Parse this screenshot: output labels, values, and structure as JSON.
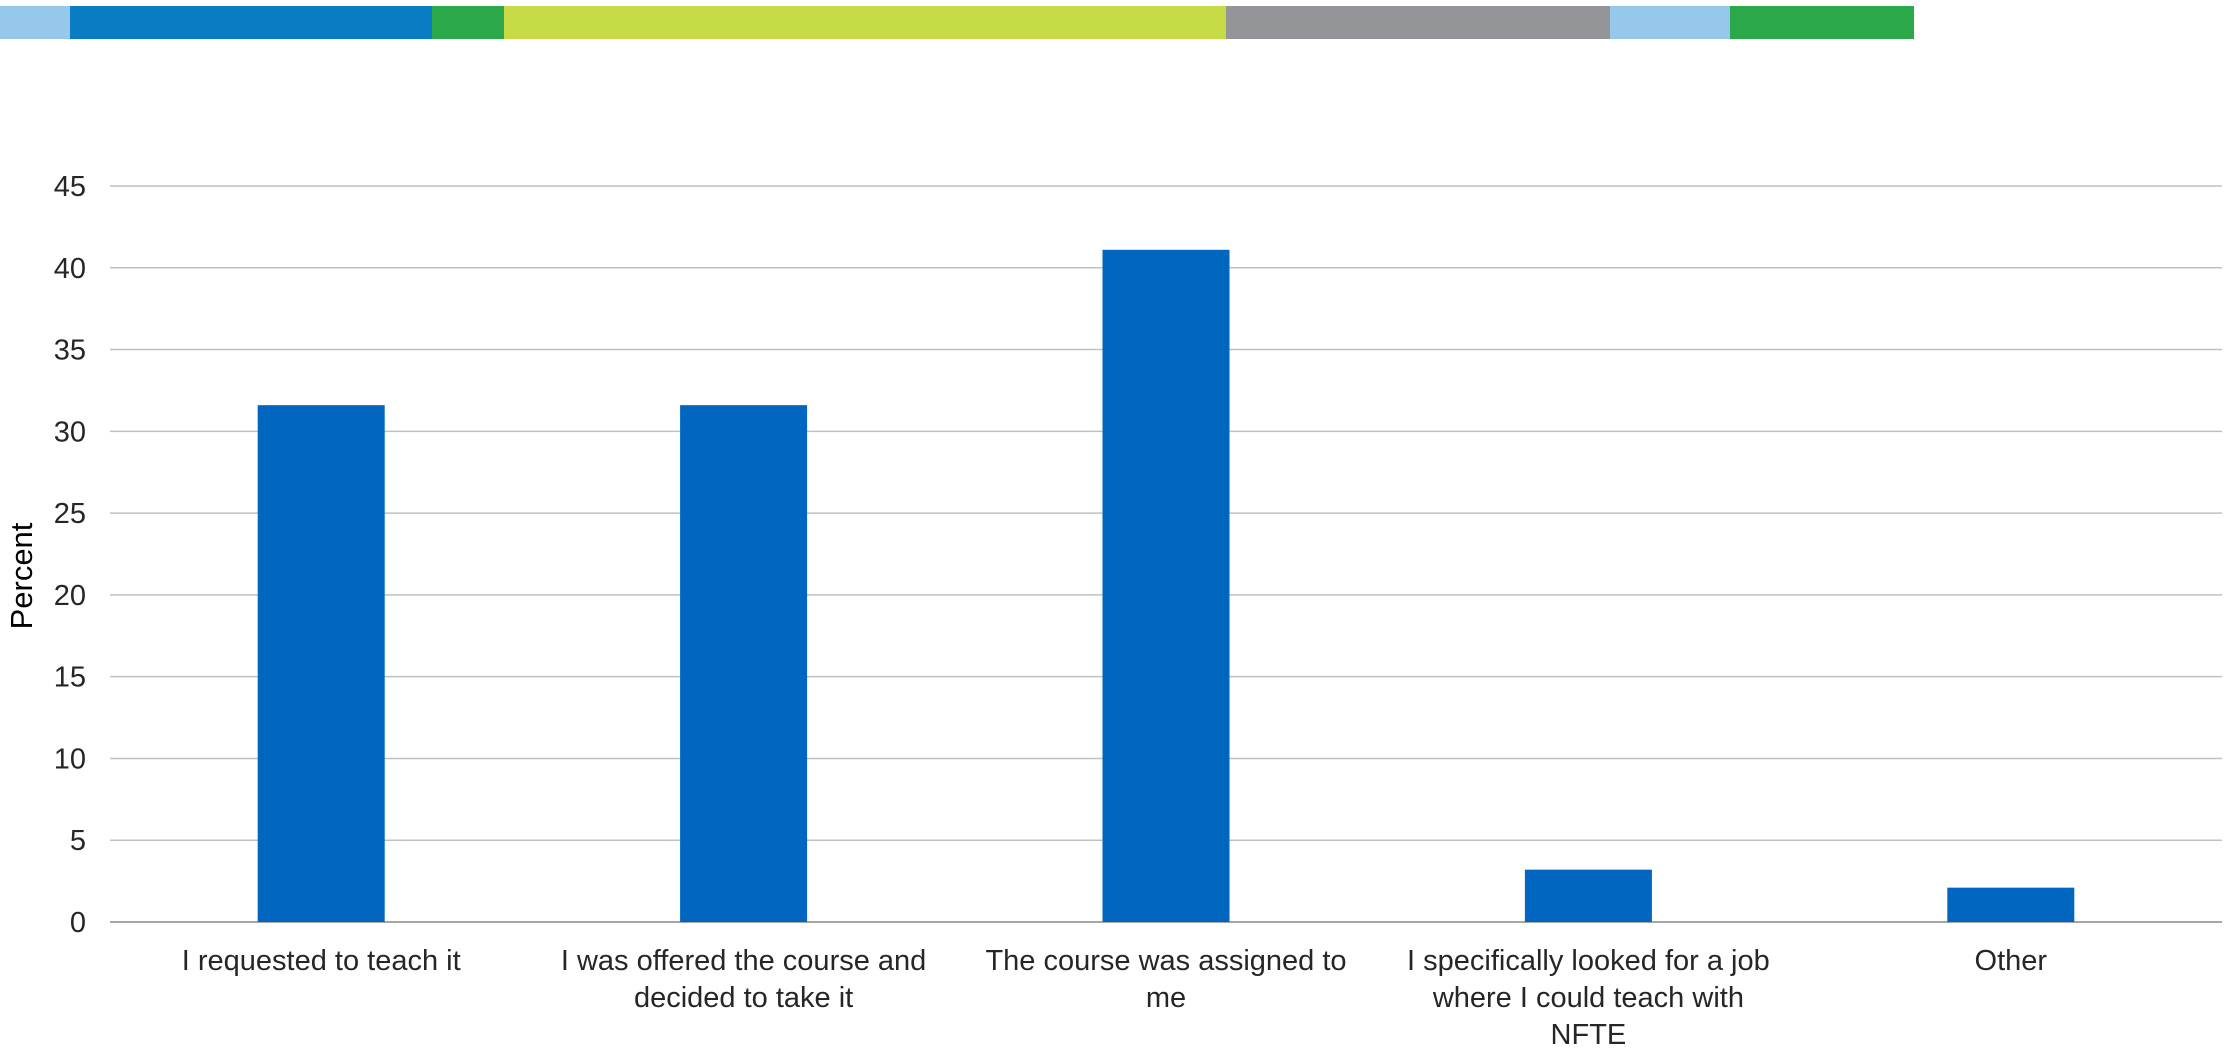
{
  "header_stripe": {
    "colors": [
      "#96c8eb",
      "#0a7cc4",
      "#2aa84a",
      "#c5da45",
      "#939598",
      "#96c8eb",
      "#2aa84a"
    ]
  },
  "chart_data": {
    "type": "bar",
    "categories": [
      "I requested to teach it",
      "I was offered the course and decided to take it",
      "The course was assigned to me",
      "I specifically looked for a job where I could teach with NFTE",
      "Other"
    ],
    "category_lines": [
      [
        "I requested to teach it"
      ],
      [
        "I was offered the course and",
        "decided to take it"
      ],
      [
        "The course was assigned to",
        "me"
      ],
      [
        "I specifically looked for a job",
        "where I could teach with",
        "NFTE"
      ],
      [
        "Other"
      ]
    ],
    "values": [
      31.6,
      31.6,
      41.1,
      3.2,
      2.1
    ],
    "title": "",
    "xlabel": "",
    "ylabel": "Percent",
    "ylim": [
      0,
      45
    ],
    "yticks": [
      "0",
      "5",
      "10",
      "15",
      "20",
      "25",
      "30",
      "35",
      "40",
      "45"
    ],
    "bar_color": "#0066bf",
    "grid": true
  }
}
